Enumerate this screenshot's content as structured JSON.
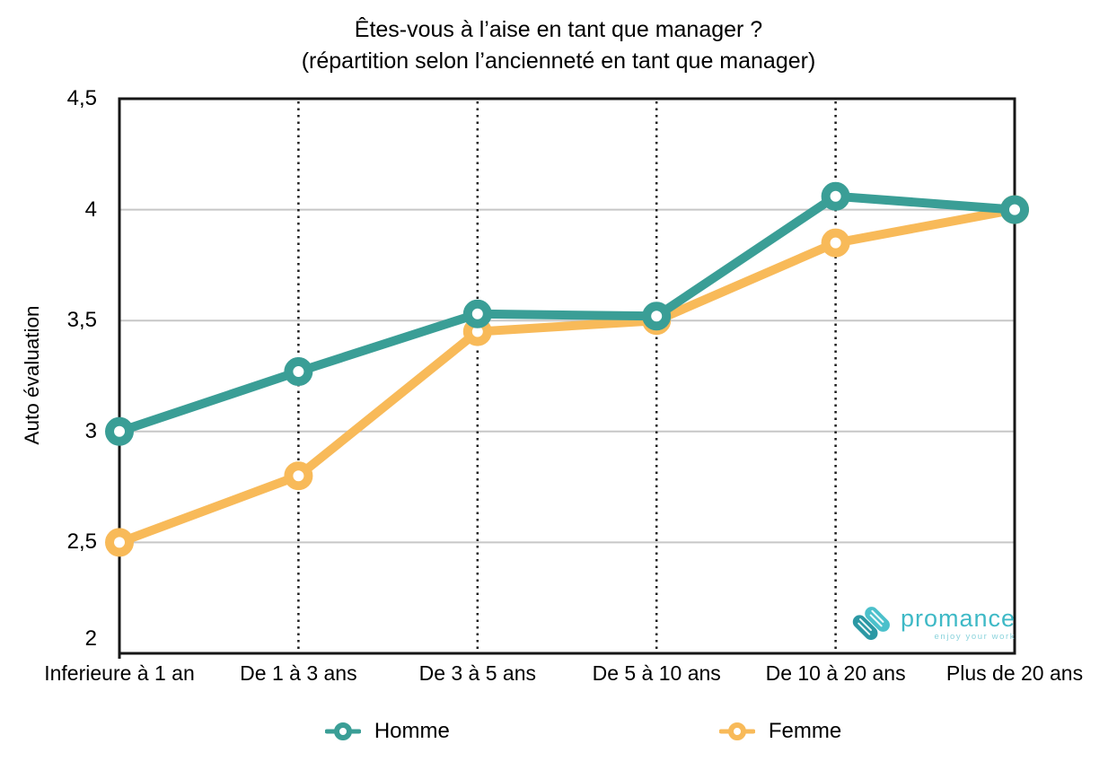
{
  "title": {
    "line1": "Êtes-vous à l’aise en tant que manager ?",
    "line2": "(répartition selon l’ancienneté en tant que manager)"
  },
  "chart_data": {
    "type": "line",
    "categories": [
      "Inferieure à 1 an",
      "De 1 à 3 ans",
      "De 3 à 5 ans",
      "De 5 à 10 ans",
      "De 10 à 20 ans",
      "Plus de 20 ans"
    ],
    "series": [
      {
        "name": "Homme",
        "color": "#3a9e96",
        "values": [
          3.0,
          3.27,
          3.53,
          3.52,
          4.06,
          4.0
        ]
      },
      {
        "name": "Femme",
        "color": "#f8ba59",
        "values": [
          2.5,
          2.8,
          3.45,
          3.5,
          3.85,
          4.0
        ]
      }
    ],
    "xlabel": "",
    "ylabel": "Auto évaluation",
    "ylim": [
      2,
      4.5
    ],
    "yticks": [
      2,
      2.5,
      3,
      3.5,
      4,
      4.5
    ],
    "ytick_labels": [
      "2",
      "2,5",
      "3",
      "3,5",
      "4",
      "4,5"
    ],
    "grid": "horizontal solid gray lines at y ticks; vertical dotted black lines at inner categories; solid black plot border",
    "legend_position": "bottom"
  },
  "watermark": {
    "brand": "promance",
    "tagline": "enjoy your work"
  },
  "colors": {
    "gridline": "#c7c7c7",
    "dotted_gridline": "#1c1c1c",
    "axis": "#161616",
    "plot_background": "#ffffff",
    "logo_teal_dark": "#2b98a4",
    "logo_teal_light": "#4bc0cb",
    "logo_text": "#3eb9c6",
    "logo_tagline": "#8bd3dc"
  }
}
